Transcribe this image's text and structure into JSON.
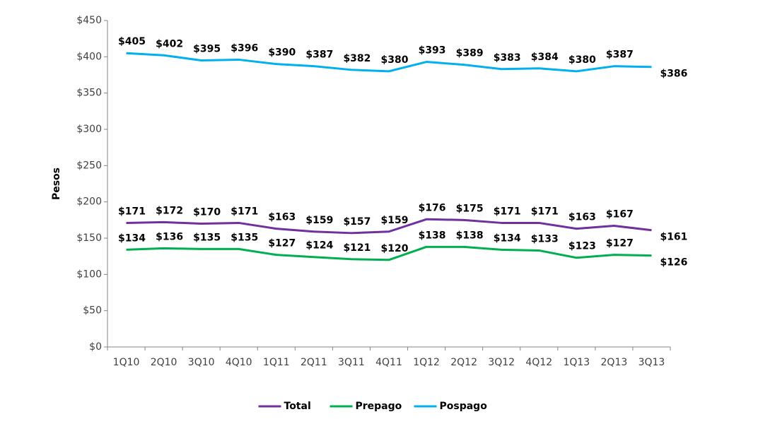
{
  "chart_data": {
    "type": "line",
    "y_label": "Pesos",
    "categories": [
      "1Q10",
      "2Q10",
      "3Q10",
      "4Q10",
      "1Q11",
      "2Q11",
      "3Q11",
      "4Q11",
      "1Q12",
      "2Q12",
      "3Q12",
      "4Q12",
      "1Q13",
      "2Q13",
      "3Q13"
    ],
    "series": [
      {
        "name": "Total",
        "color": "#7030a0",
        "values": [
          171,
          172,
          170,
          171,
          163,
          159,
          157,
          159,
          176,
          175,
          171,
          171,
          163,
          167,
          161
        ],
        "value_labels": [
          "$171",
          "$172",
          "$170",
          "$171",
          "$163",
          "$159",
          "$157",
          "$159",
          "$176",
          "$175",
          "$171",
          "$171",
          "$163",
          "$167",
          "$161"
        ]
      },
      {
        "name": "Prepago",
        "color": "#00b050",
        "values": [
          134,
          136,
          135,
          135,
          127,
          124,
          121,
          120,
          138,
          138,
          134,
          133,
          123,
          127,
          126
        ],
        "value_labels": [
          "$134",
          "$136",
          "$135",
          "$135",
          "$127",
          "$124",
          "$121",
          "$120",
          "$138",
          "$138",
          "$134",
          "$133",
          "$123",
          "$127",
          "$126"
        ]
      },
      {
        "name": "Pospago",
        "color": "#00b0f0",
        "values": [
          405,
          402,
          395,
          396,
          390,
          387,
          382,
          380,
          393,
          389,
          383,
          384,
          380,
          387,
          386
        ],
        "value_labels": [
          "$405",
          "$402",
          "$395",
          "$396",
          "$390",
          "$387",
          "$382",
          "$380",
          "$393",
          "$389",
          "$383",
          "$384",
          "$380",
          "$387",
          "$386"
        ]
      }
    ],
    "ylim": [
      0,
      450
    ],
    "yticks": [
      {
        "value": 0,
        "label": "$0"
      },
      {
        "value": 50,
        "label": "$50"
      },
      {
        "value": 100,
        "label": "$100"
      },
      {
        "value": 150,
        "label": "$150"
      },
      {
        "value": 200,
        "label": "$200"
      },
      {
        "value": 250,
        "label": "$250"
      },
      {
        "value": 300,
        "label": "$300"
      },
      {
        "value": 350,
        "label": "$350"
      },
      {
        "value": 400,
        "label": "$400"
      },
      {
        "value": 450,
        "label": "$450"
      }
    ],
    "legend": "bottom"
  }
}
